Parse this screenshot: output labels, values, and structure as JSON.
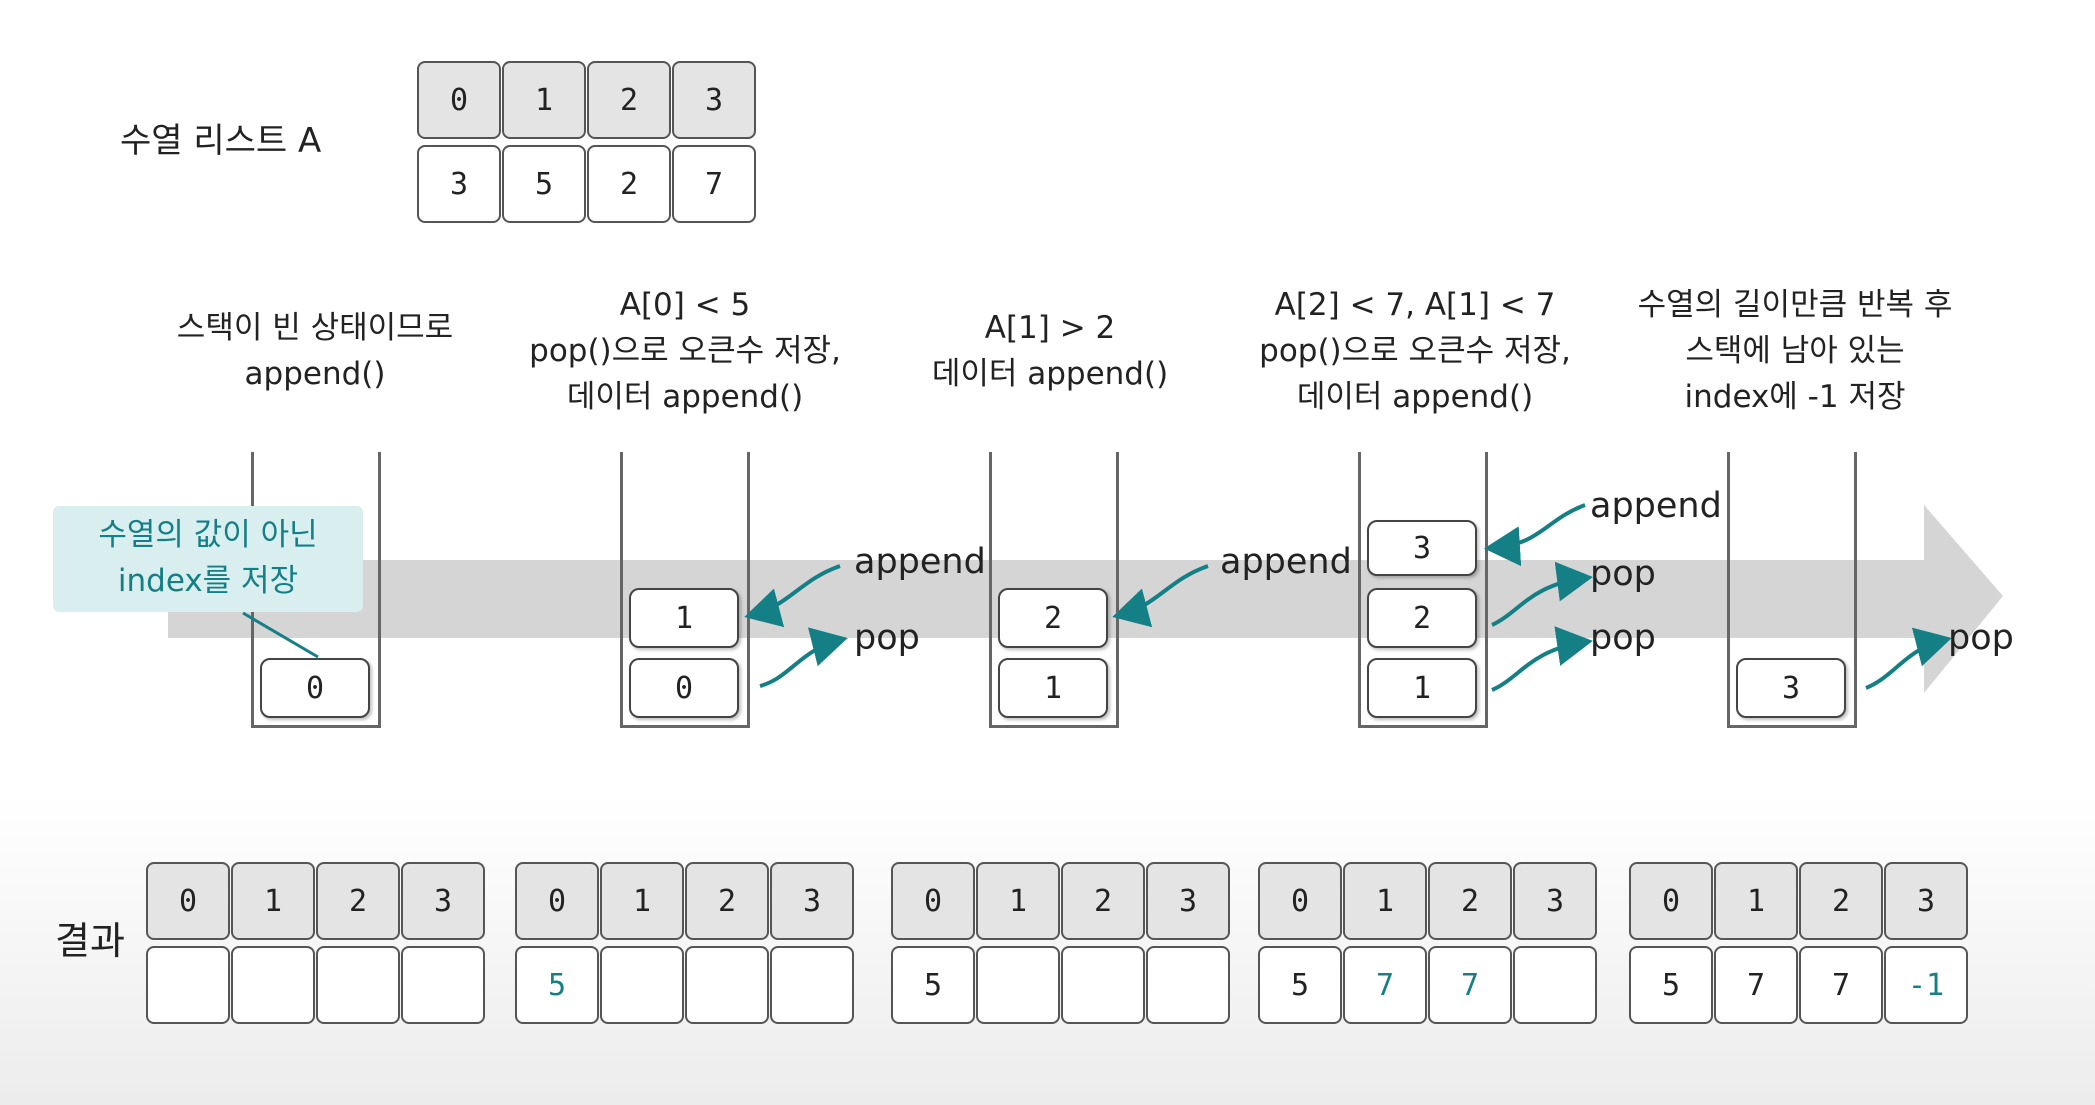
{
  "sequence_label": "수열 리스트 A",
  "sequence": {
    "indices": [
      "0",
      "1",
      "2",
      "3"
    ],
    "values": [
      "3",
      "5",
      "2",
      "7"
    ]
  },
  "callout": {
    "line1": "수열의 값이 아닌",
    "line2": "index를 저장"
  },
  "steps": [
    {
      "lines": [
        "스택이 빈 상태이므로",
        "append()"
      ],
      "stack": [
        "0"
      ]
    },
    {
      "lines": [
        "A[0] < 5",
        "pop()으로 오큰수 저장,",
        "데이터 append()"
      ],
      "stack": [
        "0",
        "1"
      ]
    },
    {
      "lines": [
        "A[1] > 2",
        "데이터 append()"
      ],
      "stack": [
        "1",
        "2"
      ]
    },
    {
      "lines": [
        "A[2] < 7, A[1] < 7",
        "pop()으로 오큰수 저장,",
        "데이터 append()"
      ],
      "stack": [
        "1",
        "2",
        "3"
      ]
    },
    {
      "lines": [
        "수열의 길이만큼 반복 후",
        "스택에 남아 있는",
        "index에 -1 저장"
      ],
      "stack": [
        "3"
      ]
    }
  ],
  "ops": {
    "append": "append",
    "pop": "pop"
  },
  "result_label": "결과",
  "results": [
    {
      "indices": [
        "0",
        "1",
        "2",
        "3"
      ],
      "values": [
        "",
        "",
        "",
        ""
      ]
    },
    {
      "indices": [
        "0",
        "1",
        "2",
        "3"
      ],
      "values": [
        "5",
        "",
        "",
        ""
      ]
    },
    {
      "indices": [
        "0",
        "1",
        "2",
        "3"
      ],
      "values": [
        "5",
        "",
        "",
        ""
      ]
    },
    {
      "indices": [
        "0",
        "1",
        "2",
        "3"
      ],
      "values": [
        "5",
        "7",
        "7",
        ""
      ]
    },
    {
      "indices": [
        "0",
        "1",
        "2",
        "3"
      ],
      "values": [
        "5",
        "7",
        "7",
        "-1"
      ]
    }
  ],
  "colors": {
    "accent": "#157f86",
    "band": "#d5d5d5",
    "callout_bg": "#d9eeef"
  }
}
